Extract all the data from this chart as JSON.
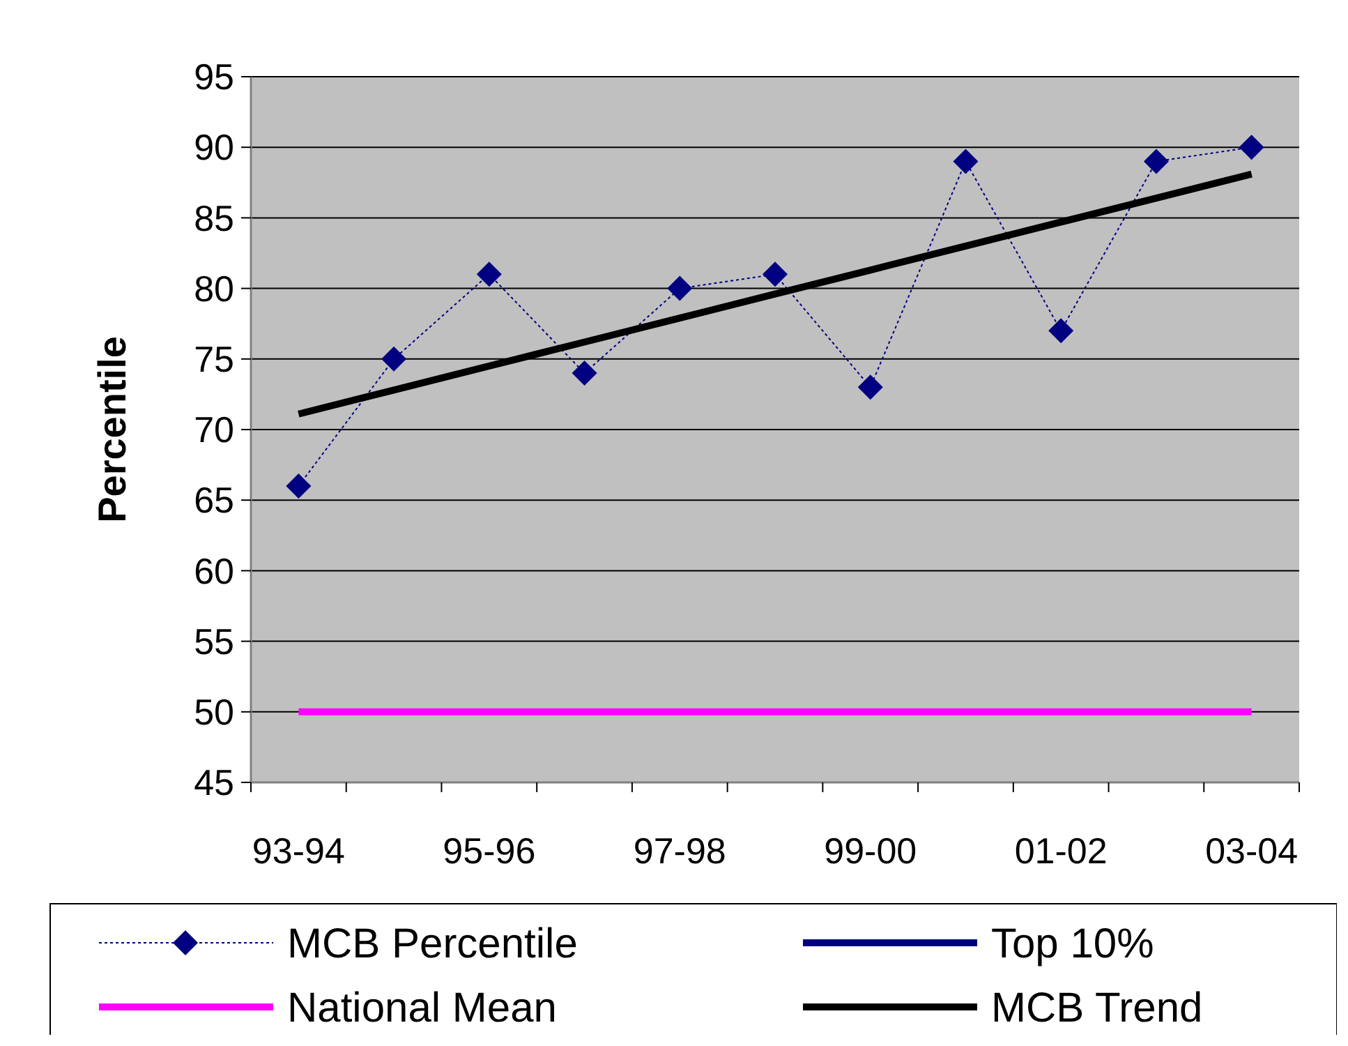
{
  "chart_data": {
    "type": "line",
    "ylabel": "Percentile",
    "categories": [
      "93-94",
      null,
      "95-96",
      null,
      "97-98",
      null,
      "99-00",
      null,
      "01-02",
      null,
      "03-04"
    ],
    "ylim": [
      45,
      95
    ],
    "yticks": [
      45,
      50,
      55,
      60,
      65,
      70,
      75,
      80,
      85,
      90,
      95
    ],
    "grid": "y",
    "legend": "bottom",
    "series": [
      {
        "name": "MCB Percentile",
        "color": "#000080",
        "values": [
          66,
          75,
          81,
          74,
          80,
          81,
          73,
          89,
          77,
          89,
          90
        ],
        "marker": "diamond",
        "line_style": "dotted"
      },
      {
        "name": "Top 10%",
        "color": "#000080",
        "values": [
          null,
          null,
          null,
          null,
          null,
          null,
          null,
          null,
          null,
          null,
          null
        ],
        "marker": "none",
        "line_style": "solid"
      },
      {
        "name": "National Mean",
        "color": "#ff00ff",
        "values": [
          50,
          50,
          50,
          50,
          50,
          50,
          50,
          50,
          50,
          50,
          50
        ],
        "marker": "none",
        "line_style": "solid"
      },
      {
        "name": "MCB Trend",
        "color": "#000000",
        "values": [
          71.1,
          72.8,
          74.5,
          76.2,
          77.9,
          79.6,
          81.3,
          83.0,
          84.7,
          86.4,
          88.1
        ],
        "marker": "none",
        "line_style": "solid"
      }
    ]
  }
}
